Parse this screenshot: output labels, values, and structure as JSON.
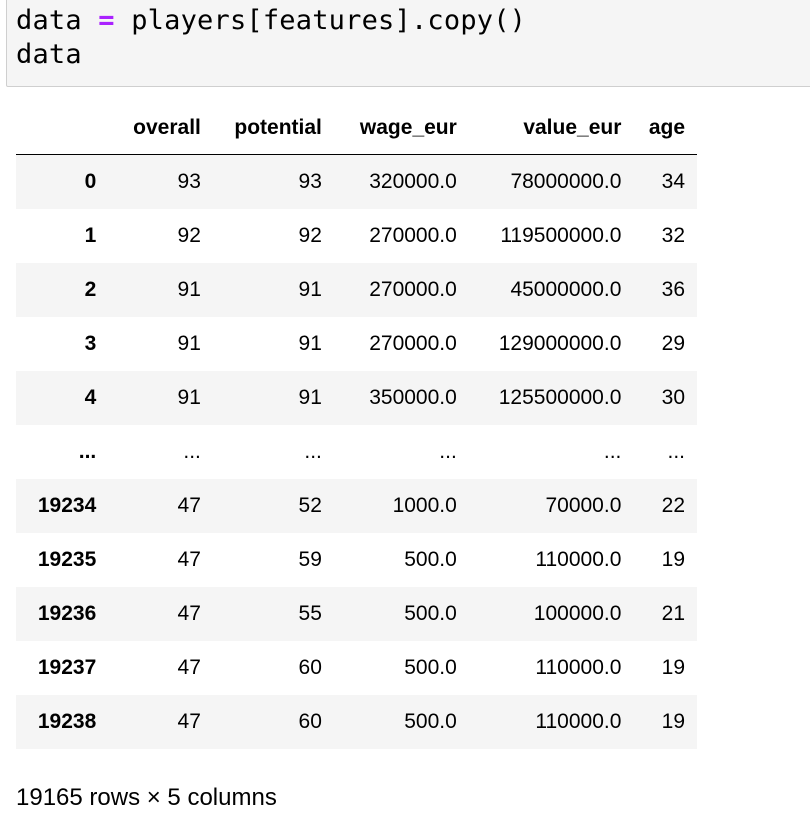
{
  "code": {
    "line1_prefix": "data ",
    "line1_operator": "=",
    "line1_suffix": " players[features].copy()",
    "line2": "data"
  },
  "table": {
    "columns": [
      "",
      "overall",
      "potential",
      "wage_eur",
      "value_eur",
      "age"
    ],
    "rows": [
      {
        "index": "0",
        "overall": "93",
        "potential": "93",
        "wage_eur": "320000.0",
        "value_eur": "78000000.0",
        "age": "34"
      },
      {
        "index": "1",
        "overall": "92",
        "potential": "92",
        "wage_eur": "270000.0",
        "value_eur": "119500000.0",
        "age": "32"
      },
      {
        "index": "2",
        "overall": "91",
        "potential": "91",
        "wage_eur": "270000.0",
        "value_eur": "45000000.0",
        "age": "36"
      },
      {
        "index": "3",
        "overall": "91",
        "potential": "91",
        "wage_eur": "270000.0",
        "value_eur": "129000000.0",
        "age": "29"
      },
      {
        "index": "4",
        "overall": "91",
        "potential": "91",
        "wage_eur": "350000.0",
        "value_eur": "125500000.0",
        "age": "30"
      },
      {
        "index": "...",
        "overall": "...",
        "potential": "...",
        "wage_eur": "...",
        "value_eur": "...",
        "age": "..."
      },
      {
        "index": "19234",
        "overall": "47",
        "potential": "52",
        "wage_eur": "1000.0",
        "value_eur": "70000.0",
        "age": "22"
      },
      {
        "index": "19235",
        "overall": "47",
        "potential": "59",
        "wage_eur": "500.0",
        "value_eur": "110000.0",
        "age": "19"
      },
      {
        "index": "19236",
        "overall": "47",
        "potential": "55",
        "wage_eur": "500.0",
        "value_eur": "100000.0",
        "age": "21"
      },
      {
        "index": "19237",
        "overall": "47",
        "potential": "60",
        "wage_eur": "500.0",
        "value_eur": "110000.0",
        "age": "19"
      },
      {
        "index": "19238",
        "overall": "47",
        "potential": "60",
        "wage_eur": "500.0",
        "value_eur": "110000.0",
        "age": "19"
      }
    ]
  },
  "footer": {
    "row_count": "19165 rows × 5 columns"
  },
  "colors": {
    "operator": "#aa22ff",
    "cell_background": "#f5f5f5",
    "stripe": "#f5f5f5"
  }
}
